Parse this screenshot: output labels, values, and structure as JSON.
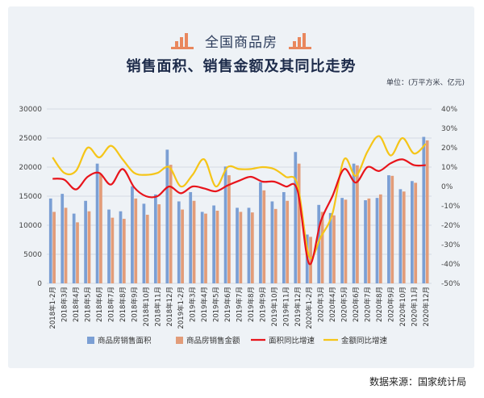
{
  "header": {
    "title": "全国商品房",
    "subtitle": "销售面积、销售金额及其同比走势",
    "unit": "单位：(万平方米、亿元)"
  },
  "source": "数据来源：国家统计局",
  "colors": {
    "area_bar": "#7b9fd4",
    "amount_bar": "#e29c79",
    "area_line": "#e8141b",
    "amount_line": "#f5c518",
    "accent": "#e9875d"
  },
  "chart_data": {
    "type": "bar+line",
    "categories": [
      "2018年1-2月",
      "2018年3月",
      "2018年4月",
      "2018年5月",
      "2018年6月",
      "2018年7月",
      "2018年8月",
      "2018年9月",
      "2018年10月",
      "2018年11月",
      "2018年12月",
      "2019年1-2月",
      "2019年3月",
      "2019年4月",
      "2019年5月",
      "2019年6月",
      "2019年7月",
      "2019年8月",
      "2019年9月",
      "2019年10月",
      "2019年11月",
      "2019年12月",
      "2020年1-2月",
      "2020年3月",
      "2020年4月",
      "2020年5月",
      "2020年6月",
      "2020年7月",
      "2020年8月",
      "2020年9月",
      "2020年10月",
      "2020年11月",
      "2020年12月"
    ],
    "series": [
      {
        "name": "商品房销售面积",
        "type": "bar",
        "axis": "left",
        "values": [
          14600,
          15400,
          12000,
          14200,
          20600,
          12700,
          12400,
          16700,
          13700,
          15300,
          23000,
          14100,
          15700,
          12300,
          13400,
          20100,
          13000,
          13000,
          17400,
          14100,
          15700,
          22600,
          8400,
          13500,
          12100,
          14700,
          20600,
          14300,
          14700,
          18600,
          16200,
          17600,
          25200
        ]
      },
      {
        "name": "商品房销售金额",
        "type": "bar",
        "axis": "left",
        "values": [
          12300,
          13000,
          10500,
          12400,
          18800,
          11300,
          11100,
          14600,
          11800,
          13600,
          20400,
          12700,
          14200,
          12000,
          12500,
          18600,
          12300,
          12200,
          16000,
          12800,
          14200,
          20600,
          8000,
          12300,
          11700,
          14400,
          20300,
          14600,
          15300,
          18500,
          15800,
          17300,
          24600
        ]
      },
      {
        "name": "面积同比增速",
        "type": "line",
        "axis": "right",
        "values": [
          4,
          3.5,
          -1.5,
          5,
          7,
          1,
          9,
          -0.5,
          -5,
          -5,
          0,
          -3.5,
          0,
          -1,
          -2.5,
          0.5,
          3,
          5,
          2.5,
          2.5,
          0,
          -2,
          -39.9,
          -18,
          -5,
          9,
          2,
          10,
          8,
          12,
          14,
          11,
          11
        ]
      },
      {
        "name": "金额同比增速",
        "type": "line",
        "axis": "right",
        "values": [
          15,
          7,
          8,
          20,
          15,
          21,
          14,
          7,
          6,
          7,
          10,
          0,
          6,
          14,
          0,
          10,
          9,
          9,
          10,
          9,
          5,
          1,
          -36,
          -26,
          -14,
          14,
          5.5,
          18,
          26,
          16,
          25,
          17,
          22
        ]
      }
    ],
    "left_axis": {
      "min": 0,
      "max": 30000,
      "ticks": [
        0,
        5000,
        10000,
        15000,
        20000,
        25000,
        30000
      ]
    },
    "right_axis": {
      "min": -50,
      "max": 40,
      "ticks": [
        "40%",
        "30%",
        "20%",
        "10%",
        "0%",
        "-10%",
        "-20%",
        "-30%",
        "-40%",
        "-50%"
      ]
    },
    "legend": [
      "商品房销售面积",
      "商品房销售金额",
      "面积同比增速",
      "金额同比增速"
    ],
    "legend_position": "bottom"
  }
}
